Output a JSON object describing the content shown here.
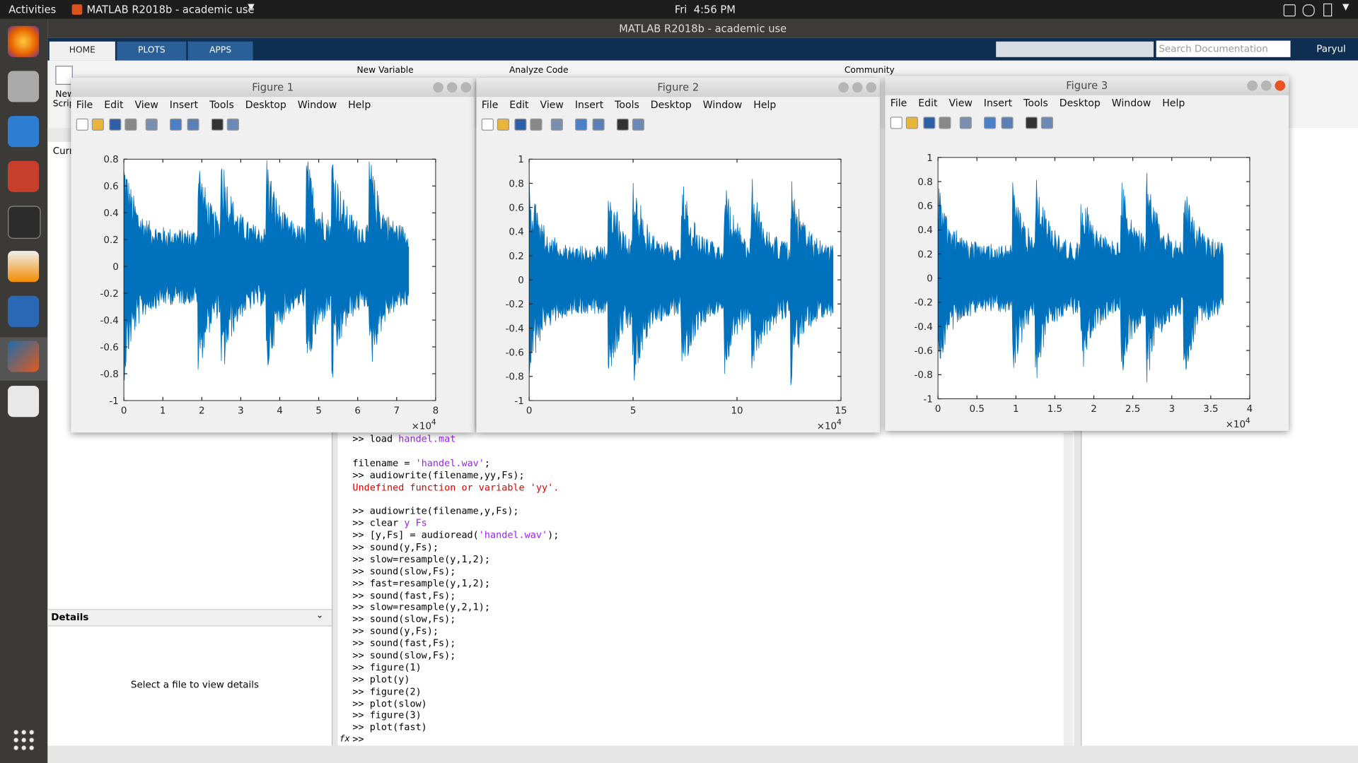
{
  "top_bar": {
    "activities": "Activities",
    "app_name": "MATLAB R2018b - academic use",
    "clock": "Fri  4:56 PM"
  },
  "window_title": "MATLAB R2018b - academic use",
  "ribbon": {
    "tabs": [
      "HOME",
      "PLOTS",
      "APPS"
    ],
    "new": "New",
    "script": "Scrip",
    "new_variable": "New Variable",
    "analyze_code": "Analyze Code",
    "community": "Community",
    "search_placeholder": "Search Documentation",
    "user": "Paryul"
  },
  "current_folder": "Curr",
  "details": {
    "title": "Details",
    "message": "Select a file to view details"
  },
  "figure_menu": [
    "File",
    "Edit",
    "View",
    "Insert",
    "Tools",
    "Desktop",
    "Window",
    "Help"
  ],
  "chart_data": [
    {
      "type": "line",
      "title": "Figure 1",
      "color": "#0072bd",
      "xlim": [
        0,
        8
      ],
      "xticks": [
        0,
        1,
        2,
        3,
        4,
        5,
        6,
        7,
        8
      ],
      "ylim": [
        -1,
        0.8
      ],
      "yticks": [
        -1,
        -0.8,
        -0.6,
        -0.4,
        -0.2,
        0,
        0.2,
        0.4,
        0.6,
        0.8
      ],
      "x_multiplier": {
        "base": "×10",
        "power": 4
      },
      "x_extent": [
        0,
        7.31
      ]
    },
    {
      "type": "line",
      "title": "Figure 2",
      "color": "#0072bd",
      "xlim": [
        0,
        15
      ],
      "xticks": [
        0,
        5,
        10,
        15
      ],
      "ylim": [
        -1,
        1
      ],
      "yticks": [
        -1,
        -0.8,
        -0.6,
        -0.4,
        -0.2,
        0,
        0.2,
        0.4,
        0.6,
        0.8,
        1
      ],
      "x_multiplier": {
        "base": "×10",
        "power": 4
      },
      "x_extent": [
        0,
        14.62
      ]
    },
    {
      "type": "line",
      "title": "Figure 3",
      "color": "#0072bd",
      "xlim": [
        0,
        4
      ],
      "xticks": [
        0,
        0.5,
        1,
        1.5,
        2,
        2.5,
        3,
        3.5,
        4
      ],
      "ylim": [
        -1,
        1
      ],
      "yticks": [
        -1,
        -0.8,
        -0.6,
        -0.4,
        -0.2,
        0,
        0.2,
        0.4,
        0.6,
        0.8,
        1
      ],
      "x_multiplier": {
        "base": "×10",
        "power": 4
      },
      "x_extent": [
        0,
        3.66
      ]
    }
  ],
  "command_window": {
    "fx_icon": "fx",
    "blocks": [
      [
        [
          {
            "text": ">> load "
          },
          {
            "text": "handel.mat",
            "color": "#a020f0"
          }
        ]
      ],
      [
        [
          {
            "text": "filename = "
          },
          {
            "text": "'handel.wav'",
            "color": "#a020f0"
          },
          {
            "text": ";"
          }
        ],
        [
          {
            "text": ">> audiowrite(filename,yy,Fs);"
          }
        ],
        [
          {
            "text": "Undefined function or variable 'yy'.",
            "color": "#e00000"
          }
        ]
      ],
      [
        [
          {
            "text": ">> audiowrite(filename,y,Fs);"
          }
        ],
        [
          {
            "text": ">> clear "
          },
          {
            "text": "y Fs",
            "color": "#a020f0"
          }
        ],
        [
          {
            "text": ">> [y,Fs] = audioread("
          },
          {
            "text": "'handel.wav'",
            "color": "#a020f0"
          },
          {
            "text": ");"
          }
        ],
        [
          {
            "text": ">> sound(y,Fs);"
          }
        ],
        [
          {
            "text": ">> slow=resample(y,1,2);"
          }
        ],
        [
          {
            "text": ">> sound(slow,Fs);"
          }
        ],
        [
          {
            "text": ">> fast=resample(y,1,2);"
          }
        ],
        [
          {
            "text": ">> sound(fast,Fs);"
          }
        ],
        [
          {
            "text": ">> slow=resample(y,2,1);"
          }
        ],
        [
          {
            "text": ">> sound(slow,Fs);"
          }
        ],
        [
          {
            "text": ">> sound(y,Fs);"
          }
        ],
        [
          {
            "text": ">> sound(fast,Fs);"
          }
        ],
        [
          {
            "text": ">> sound(slow,Fs);"
          }
        ],
        [
          {
            "text": ">> figure(1)"
          }
        ],
        [
          {
            "text": ">> plot(y)"
          }
        ],
        [
          {
            "text": ">> figure(2)"
          }
        ],
        [
          {
            "text": ">> plot(slow)"
          }
        ],
        [
          {
            "text": ">> figure(3)"
          }
        ],
        [
          {
            "text": ">> plot(fast)"
          }
        ],
        [
          {
            "text": ">>"
          }
        ]
      ]
    ]
  }
}
